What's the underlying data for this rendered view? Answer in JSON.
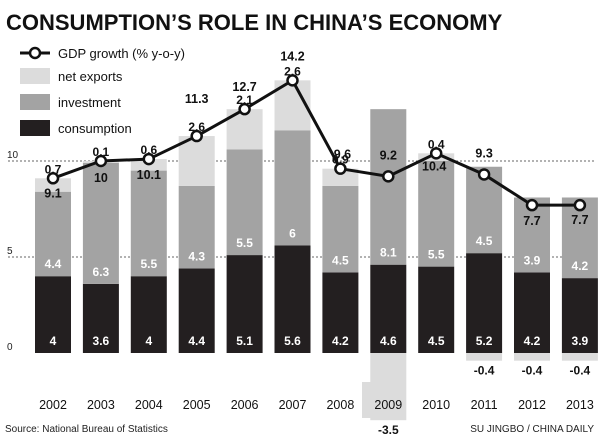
{
  "chart_data": {
    "type": "bar",
    "title": "CONSUMPTION’S ROLE IN CHINA’S ECONOMY",
    "categories": [
      "2002",
      "2003",
      "2004",
      "2005",
      "2006",
      "2007",
      "2008",
      "2009",
      "2010",
      "2011",
      "2012",
      "2013"
    ],
    "series": [
      {
        "name": "consumption",
        "values": [
          4,
          3.6,
          4,
          4.4,
          5.1,
          5.6,
          4.2,
          4.6,
          4.5,
          5.2,
          4.2,
          3.9
        ],
        "color": "#231f20"
      },
      {
        "name": "investment",
        "values": [
          4.4,
          6.3,
          5.5,
          4.3,
          5.5,
          6,
          4.5,
          8.1,
          5.5,
          4.5,
          3.9,
          4.2
        ],
        "color": "#a3a3a3"
      },
      {
        "name": "net exports",
        "values": [
          0.7,
          0.1,
          0.6,
          2.6,
          2.1,
          2.6,
          0.9,
          -3.5,
          0.4,
          -0.4,
          -0.4,
          -0.4
        ],
        "color": "#dcdcdc"
      }
    ],
    "gdp_growth": {
      "name": "GDP growth (% y-o-y)",
      "values": [
        9.1,
        10,
        10.1,
        11.3,
        12.7,
        14.2,
        9.6,
        9.2,
        10.4,
        9.3,
        7.7,
        7.7
      ]
    },
    "legend": [
      "GDP growth (% y-o-y)",
      "net exports",
      "investment",
      "consumption"
    ],
    "yticks": [
      0,
      5,
      10
    ],
    "ylim": [
      -4,
      15
    ],
    "xlabel": "",
    "ylabel": "",
    "grid": "dashed lines at 5 and 10"
  },
  "footer": {
    "source": "Source: National Bureau of Statistics",
    "credit": "SU JINGBO / CHINA DAILY"
  },
  "colors": {
    "consumption": "#231f20",
    "investment": "#a3a3a3",
    "net_exports": "#dcdcdc",
    "line": "#111111",
    "highlight_year": "#dcdcdc"
  }
}
